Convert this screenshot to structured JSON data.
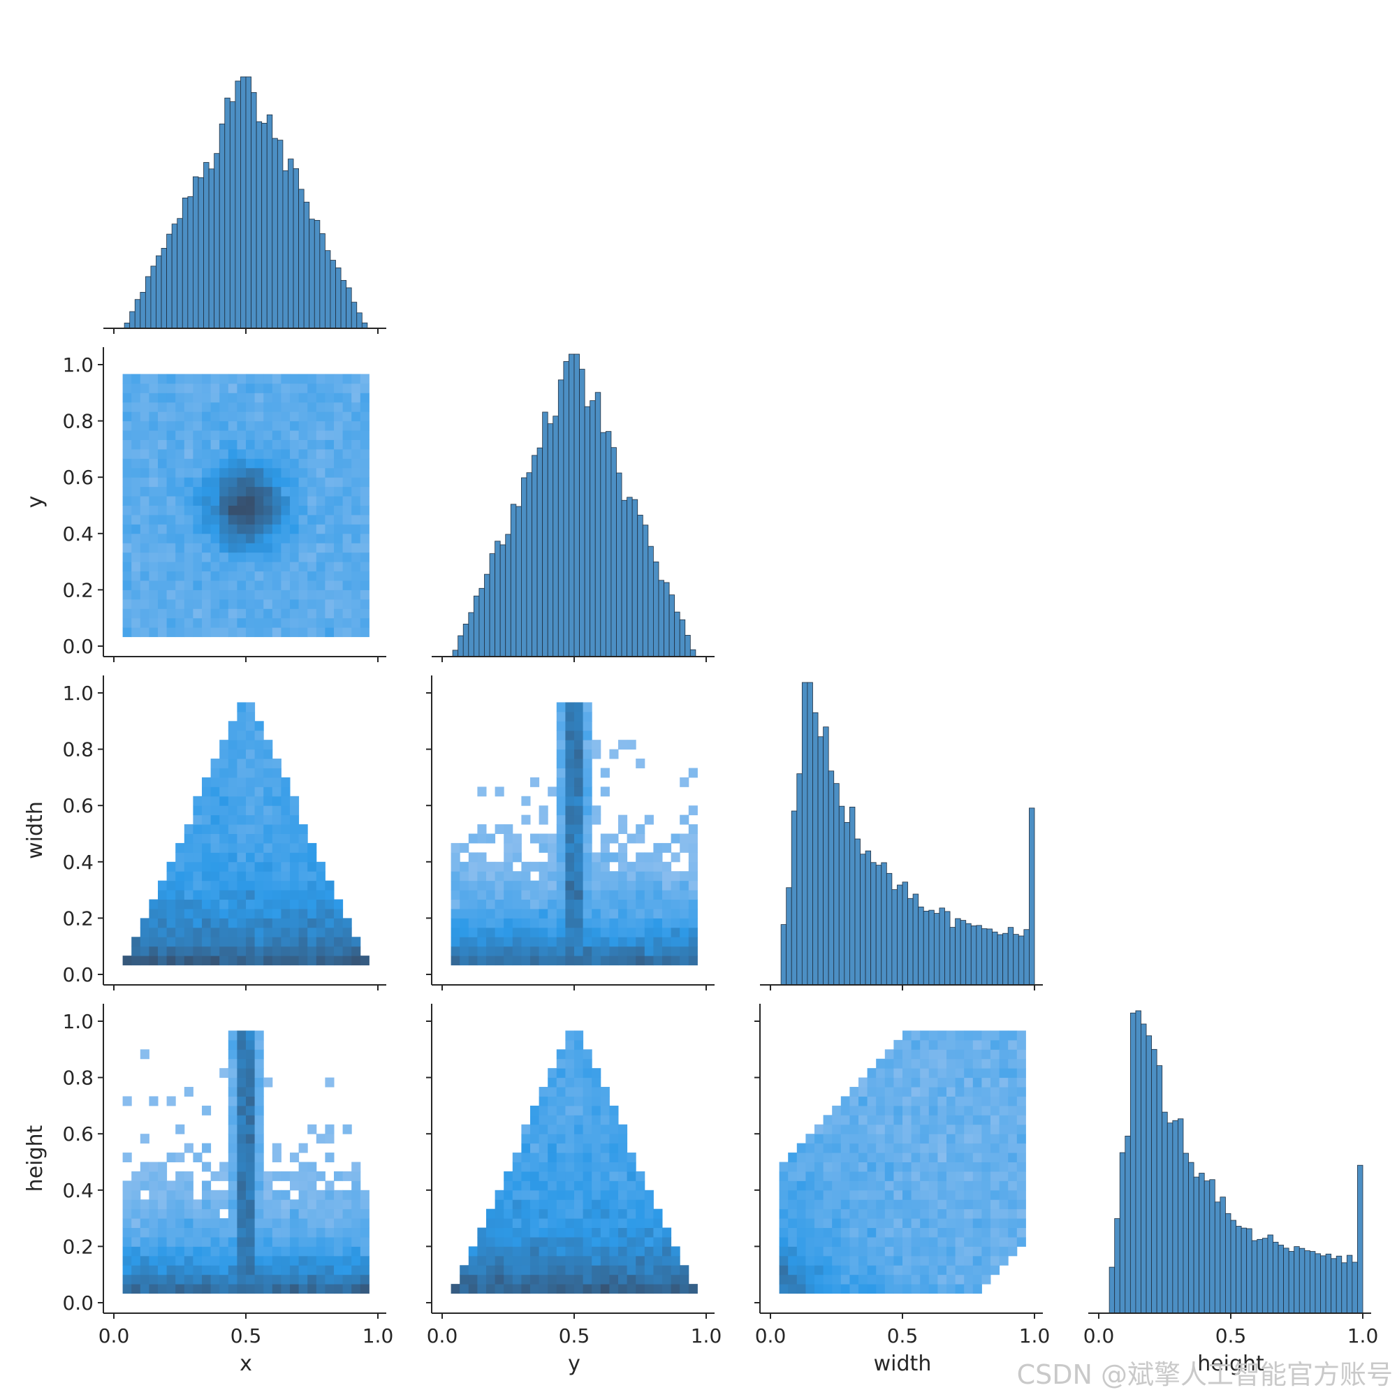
{
  "chart_data": {
    "type": "pairplot",
    "kind": "hist",
    "corner": true,
    "variables": [
      "x",
      "y",
      "width",
      "height"
    ],
    "diag_xlim": [
      0.0,
      1.0
    ],
    "tick_values": [
      0.0,
      0.5,
      1.0
    ],
    "ytick_values_row1": [
      0.0,
      0.2,
      0.4,
      0.6,
      0.8,
      1.0
    ],
    "ytick_values_other": [
      0.0,
      0.2,
      0.4,
      0.6,
      0.8,
      1.0
    ],
    "tick_labels": {
      "x_axis": [
        "0.0",
        "0.5",
        "1.0"
      ],
      "y_axis": [
        "0.0",
        "0.2",
        "0.4",
        "0.6",
        "0.8",
        "1.0"
      ]
    },
    "colors": {
      "bar_fill": "#4c8fc4",
      "bar_edge": "#1f2f40",
      "hist2d_low": "#a6c8f0",
      "hist2d_mid": "#2e9ae8",
      "hist2d_high": "#37506e"
    },
    "diagonals": [
      {
        "variable": "x",
        "shape": "triangular",
        "peak": 0.5,
        "range": [
          0.04,
          0.96
        ]
      },
      {
        "variable": "y",
        "shape": "triangular",
        "peak": 0.5,
        "range": [
          0.04,
          0.96
        ]
      },
      {
        "variable": "width",
        "shape": "right-skewed",
        "mode": 0.14,
        "range": [
          0.03,
          1.0
        ]
      },
      {
        "variable": "height",
        "shape": "right-skewed",
        "mode": 0.16,
        "range": [
          0.03,
          1.0
        ]
      }
    ],
    "offdiag_patterns": [
      {
        "x": "x",
        "y": "y",
        "pattern": "centered blob",
        "center": [
          0.5,
          0.5
        ]
      },
      {
        "x": "x",
        "y": "width",
        "pattern": "triangle apex at top"
      },
      {
        "x": "y",
        "y": "width",
        "pattern": "spike at 0.5, dense near bottom"
      },
      {
        "x": "x",
        "y": "height",
        "pattern": "spike at 0.5, dense near bottom"
      },
      {
        "x": "y",
        "y": "height",
        "pattern": "triangle apex at top"
      },
      {
        "x": "width",
        "y": "height",
        "pattern": "positive correlation, dense near origin"
      }
    ]
  },
  "watermark": "CSDN @斌擎人工智能官方账号"
}
